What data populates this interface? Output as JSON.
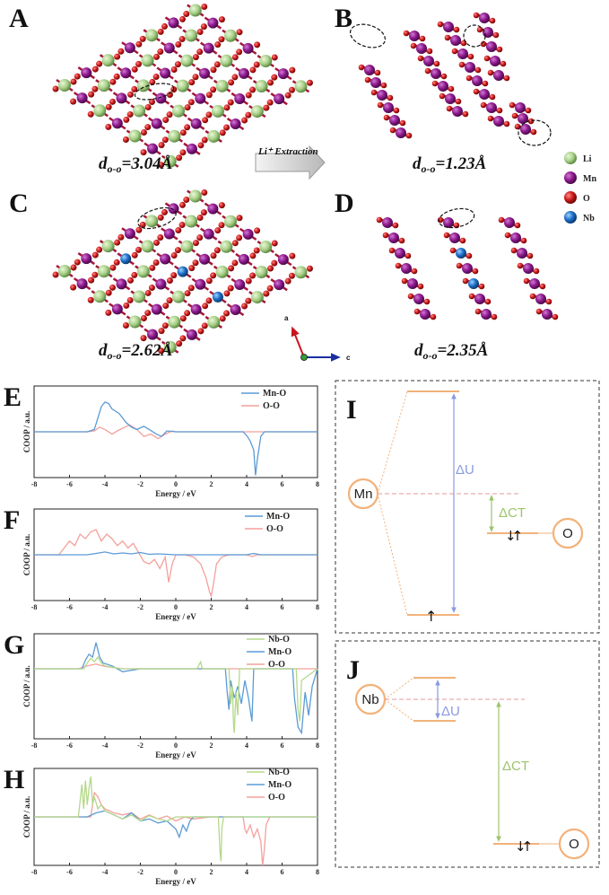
{
  "structures": {
    "A": {
      "letter": "A",
      "d_label": "d",
      "d_sub": "o-o",
      "d_value": "=3.04Å"
    },
    "B": {
      "letter": "B",
      "d_label": "d",
      "d_sub": "o-o",
      "d_value": "=1.23Å"
    },
    "C": {
      "letter": "C",
      "d_label": "d",
      "d_sub": "o-o",
      "d_value": "=2.62Å"
    },
    "D": {
      "letter": "D",
      "d_label": "d",
      "d_sub": "o-o",
      "d_value": "=2.35Å"
    },
    "arrow_text": "Li⁺ Extraction",
    "axes": {
      "a": "a",
      "c": "c"
    }
  },
  "atom_legend": [
    {
      "name": "Li",
      "color": "#8fd14f"
    },
    {
      "name": "Mn",
      "color": "#8e1a8e"
    },
    {
      "name": "O",
      "color": "#c8161d"
    },
    {
      "name": "Nb",
      "color": "#1e6fc8"
    }
  ],
  "colors": {
    "Mn-O": "#5b9bd5",
    "O-O": "#f4a09c",
    "Nb-O": "#b5d88a",
    "orange": "#f2b27a",
    "blue": "#8a9ae0",
    "green": "#9cc46b"
  },
  "chart_data": [
    {
      "type": "line",
      "letter": "E",
      "xlabel": "Energy / eV",
      "ylabel": "COOP / a.u.",
      "xlim": [
        -8,
        8
      ],
      "ylim": [
        -1,
        1
      ],
      "xticks": [
        "-8",
        "-6",
        "-4",
        "-2",
        "0",
        "2",
        "4",
        "6",
        "8"
      ],
      "series": [
        {
          "name": "Mn-O",
          "x": [
            -8,
            -5,
            -4.6,
            -4.4,
            -4.2,
            -4.0,
            -3.8,
            -3.6,
            -3.2,
            -2.8,
            -2.5,
            -2.2,
            -1.8,
            -1.5,
            -1.1,
            -0.8,
            -0.5,
            0,
            2,
            3.8,
            4.0,
            4.2,
            4.4,
            4.5,
            4.6,
            4.8,
            5.0,
            8
          ],
          "y": [
            0,
            0,
            0.05,
            0.3,
            0.55,
            0.65,
            0.62,
            0.5,
            0.4,
            0.2,
            0.1,
            0.05,
            0.12,
            0.05,
            -0.05,
            -0.1,
            0.02,
            0,
            0,
            0,
            -0.08,
            -0.2,
            -0.4,
            -0.95,
            -0.6,
            -0.1,
            0,
            0
          ]
        },
        {
          "name": "O-O",
          "x": [
            -8,
            -5,
            -4.6,
            -4.3,
            -4.0,
            -3.6,
            -3.3,
            -3.0,
            -2.6,
            -2.2,
            -1.8,
            -1.4,
            -1.0,
            -0.6,
            -0.2,
            0,
            8
          ],
          "y": [
            0,
            0,
            0.02,
            0.1,
            0.05,
            -0.05,
            0.02,
            0.08,
            0.15,
            0.05,
            -0.1,
            -0.05,
            -0.15,
            -0.05,
            0.02,
            0,
            0
          ]
        }
      ]
    },
    {
      "type": "line",
      "letter": "F",
      "xlabel": "Energy / eV",
      "ylabel": "COOP / a.u.",
      "xlim": [
        -8,
        8
      ],
      "ylim": [
        -1,
        1
      ],
      "xticks": [
        "-8",
        "-6",
        "-4",
        "-2",
        "0",
        "2",
        "4",
        "6",
        "8"
      ],
      "series": [
        {
          "name": "Mn-O",
          "x": [
            -8,
            -5,
            -4.5,
            -4.0,
            -3.5,
            -3.0,
            -2.5,
            -2.0,
            -1.5,
            -1.0,
            0,
            2,
            4,
            4.4,
            4.8,
            8
          ],
          "y": [
            0,
            0,
            0.03,
            0.06,
            0.02,
            0.04,
            0.02,
            0.05,
            0.01,
            0.02,
            0,
            0,
            0,
            0.03,
            0,
            0
          ]
        },
        {
          "name": "O-O",
          "x": [
            -8,
            -6.6,
            -6.3,
            -6.0,
            -5.7,
            -5.4,
            -5.1,
            -4.8,
            -4.5,
            -4.2,
            -3.9,
            -3.6,
            -3.3,
            -3.0,
            -2.7,
            -2.4,
            -2.1,
            -1.8,
            -1.5,
            -1.2,
            -0.9,
            -0.6,
            -0.4,
            -0.2,
            0,
            0.5,
            1.0,
            1.4,
            1.7,
            1.9,
            2.0,
            2.1,
            2.3,
            2.6,
            3.0,
            4.0,
            4.3,
            4.6,
            8
          ],
          "y": [
            0,
            0,
            0.15,
            0.3,
            0.2,
            0.45,
            0.35,
            0.5,
            0.55,
            0.3,
            0.45,
            0.35,
            0.2,
            0.3,
            0.15,
            0.25,
            0.05,
            -0.15,
            -0.2,
            -0.1,
            -0.3,
            -0.05,
            -0.6,
            -0.2,
            0,
            0,
            -0.05,
            -0.2,
            -0.5,
            -0.8,
            -0.9,
            -0.7,
            -0.2,
            -0.05,
            0,
            0,
            -0.04,
            0,
            0
          ]
        }
      ]
    },
    {
      "type": "line",
      "letter": "G",
      "xlabel": "Energy / eV",
      "ylabel": "COOP / a.u.",
      "xlim": [
        -8,
        8
      ],
      "ylim": [
        -1.2,
        0.6
      ],
      "xticks": [
        "-8",
        "-6",
        "-4",
        "-2",
        "0",
        "2",
        "4",
        "6",
        "8"
      ],
      "series": [
        {
          "name": "Nb-O",
          "x": [
            -8,
            -5.2,
            -5.0,
            -4.8,
            -4.6,
            -4.4,
            -4.2,
            -4.0,
            -3.5,
            -3,
            1.2,
            1.4,
            1.5,
            3.0,
            3.1,
            3.2,
            3.25,
            3.3,
            3.4,
            3.5,
            3.6,
            6.8,
            6.9,
            7.0,
            7.1,
            8
          ],
          "y": [
            0,
            0,
            0.1,
            0.18,
            0.12,
            0.2,
            0.1,
            0.05,
            0.02,
            0,
            0,
            0.12,
            0,
            0,
            -0.6,
            -0.3,
            -0.9,
            -1.1,
            -0.4,
            -0.8,
            0,
            0,
            -0.7,
            -0.9,
            -0.2,
            0
          ]
        },
        {
          "name": "Mn-O",
          "x": [
            -8,
            -5.3,
            -5.1,
            -4.9,
            -4.7,
            -4.5,
            -4.3,
            -4.1,
            -3.6,
            -3.0,
            -2.0,
            2.8,
            2.9,
            3.0,
            3.1,
            3.3,
            3.5,
            3.7,
            3.9,
            4.1,
            4.3,
            4.4,
            6.6,
            6.7,
            6.9,
            7.1,
            7.3,
            7.5,
            7.7,
            8
          ],
          "y": [
            0,
            0,
            0.15,
            0.25,
            0.2,
            0.45,
            0.2,
            0.1,
            0.05,
            -0.05,
            0,
            0,
            -0.4,
            -0.7,
            -0.2,
            -0.5,
            -0.3,
            -0.6,
            -0.2,
            -0.5,
            -0.9,
            0,
            0,
            -0.5,
            -1.0,
            -1.1,
            -0.4,
            -0.8,
            -0.3,
            0
          ]
        },
        {
          "name": "O-O",
          "x": [
            -8,
            -5.5,
            -5.0,
            -4.5,
            -4.0,
            -3.5,
            -3.0,
            0,
            8
          ],
          "y": [
            0,
            0,
            0.05,
            0.08,
            0.04,
            0.02,
            0,
            0,
            0
          ]
        }
      ]
    },
    {
      "type": "line",
      "letter": "H",
      "xlabel": "Energy / eV",
      "ylabel": "COOP / a.u.",
      "xlim": [
        -8,
        8
      ],
      "ylim": [
        -1.2,
        1.2
      ],
      "xticks": [
        "-8",
        "-6",
        "-4",
        "-2",
        "0",
        "2",
        "4",
        "6",
        "8"
      ],
      "series": [
        {
          "name": "Nb-O",
          "x": [
            -8,
            -5.5,
            -5.3,
            -5.2,
            -5.1,
            -5.0,
            -4.9,
            -4.8,
            -4.7,
            -4.6,
            -4.4,
            -4.2,
            -4.0,
            -3.5,
            -3.0,
            -2.5,
            -2.0,
            -1.5,
            -1.0,
            -0.5,
            0,
            2.4,
            2.5,
            2.55,
            2.6,
            2.7,
            8
          ],
          "y": [
            0,
            0,
            0.8,
            0.2,
            0.9,
            0.3,
            0.7,
            1.0,
            0.3,
            0.5,
            0.2,
            0.3,
            0.15,
            0.05,
            -0.05,
            0.05,
            -0.1,
            0.03,
            -0.05,
            -0.1,
            0,
            0,
            -0.9,
            -1.1,
            -0.3,
            0,
            0
          ]
        },
        {
          "name": "Mn-O",
          "x": [
            -8,
            -5,
            -4.5,
            -4.0,
            -3.5,
            -3.0,
            -2.5,
            -2.0,
            -1.5,
            -1.0,
            -0.5,
            0,
            0.2,
            0.4,
            0.6,
            0.8,
            1.0,
            8
          ],
          "y": [
            0,
            0,
            0.1,
            0.15,
            0.05,
            -0.05,
            0.1,
            -0.1,
            -0.05,
            -0.15,
            -0.1,
            -0.3,
            -0.5,
            -0.2,
            -0.35,
            -0.1,
            0,
            0
          ]
        },
        {
          "name": "O-O",
          "x": [
            -8,
            -4.8,
            -4.6,
            -4.4,
            -4.2,
            -4.0,
            -3.5,
            -3.0,
            -2.5,
            -2.0,
            -1.5,
            -1.0,
            -0.5,
            0,
            0.5,
            1.0,
            2.0,
            3.8,
            3.9,
            4.0,
            4.2,
            4.4,
            4.6,
            4.8,
            4.9,
            5.0,
            5.1,
            5.3,
            8
          ],
          "y": [
            0,
            0,
            0.6,
            0.5,
            0.3,
            0.2,
            0.1,
            0.05,
            0.1,
            -0.05,
            0.05,
            -0.05,
            0.02,
            -0.1,
            0,
            -0.05,
            0,
            0,
            -0.3,
            -0.4,
            -0.2,
            -0.5,
            -0.3,
            -0.6,
            -1.2,
            -0.8,
            -0.2,
            0,
            0
          ]
        }
      ]
    }
  ],
  "diagram_I": {
    "letter": "I",
    "metal": "Mn",
    "ligand": "O",
    "delta_u": "ΔU",
    "delta_ct": "ΔCT",
    "spins_low": "↑",
    "spins_ligand": "↓↑"
  },
  "diagram_J": {
    "letter": "J",
    "metal": "Nb",
    "ligand": "O",
    "delta_u": "ΔU",
    "delta_ct": "ΔCT",
    "spins_ligand": "↓↑"
  }
}
